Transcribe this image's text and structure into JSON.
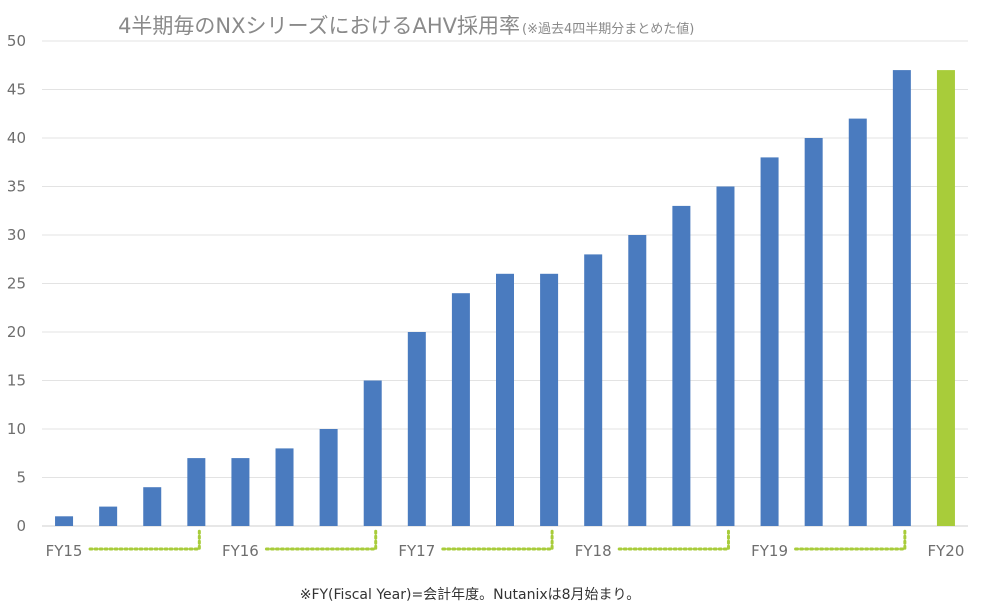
{
  "chart_data": {
    "type": "bar",
    "title": "4半期毎のNXシリーズにおけるAHV採用率",
    "subtitle": "(※過去4四半期分まとめた値)",
    "footnote": "※FY(Fiscal Year)=会計年度。Nutanixは8月始まり。",
    "ylim": [
      0,
      50
    ],
    "yticks": [
      0,
      5,
      10,
      15,
      20,
      25,
      30,
      35,
      40,
      45,
      50
    ],
    "grid": true,
    "values": [
      1,
      2,
      4,
      7,
      7,
      8,
      10,
      15,
      20,
      24,
      26,
      26,
      28,
      30,
      33,
      35,
      38,
      40,
      42,
      47,
      47
    ],
    "year_labels": [
      {
        "label": "FY15",
        "bar_index": 0
      },
      {
        "label": "FY16",
        "bar_index": 4
      },
      {
        "label": "FY17",
        "bar_index": 8
      },
      {
        "label": "FY18",
        "bar_index": 12
      },
      {
        "label": "FY19",
        "bar_index": 16
      },
      {
        "label": "FY20",
        "bar_index": 20
      }
    ],
    "highlight_index": 20,
    "colors": {
      "bar": "#4a7bbf",
      "highlight": "#a8cc3a",
      "bracket": "#a8cc3a",
      "grid": "#e3e3e3"
    }
  }
}
